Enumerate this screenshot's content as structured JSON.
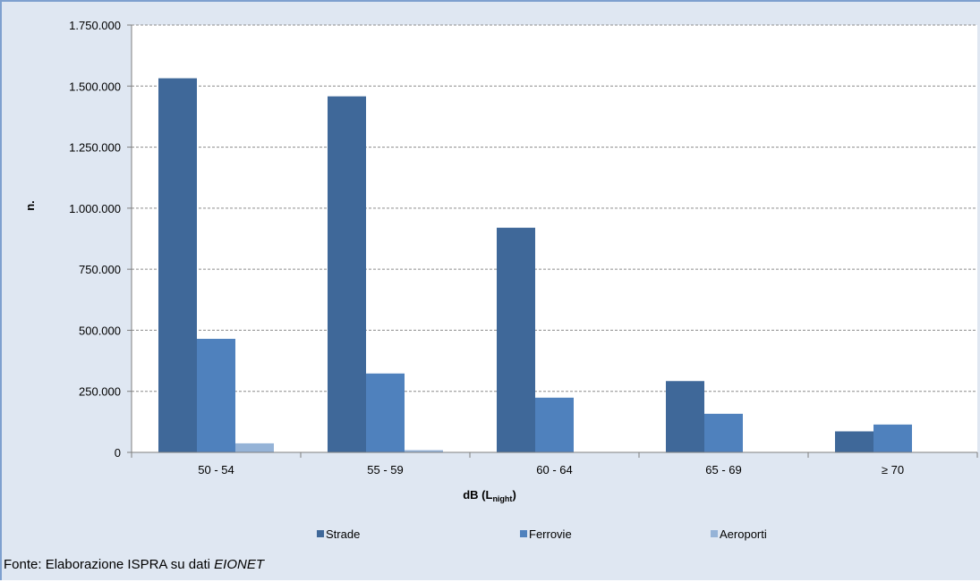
{
  "chart_data": {
    "type": "bar",
    "categories": [
      "50 - 54",
      "55 - 59",
      "60 - 64",
      "65 - 69",
      "≥ 70"
    ],
    "series": [
      {
        "name": "Strade",
        "color": "#3f6899",
        "values": [
          1532000,
          1458000,
          920000,
          292000,
          86000
        ]
      },
      {
        "name": "Ferrovie",
        "color": "#4f81bd",
        "values": [
          465000,
          323000,
          224000,
          158000,
          114000
        ]
      },
      {
        "name": "Aeroporti",
        "color": "#95b3d7",
        "values": [
          37000,
          9000,
          0,
          0,
          0
        ]
      }
    ],
    "ylabel": "n.",
    "xlabel_main": "dB (L",
    "xlabel_sub": "night",
    "xlabel_close": ")",
    "ylim": [
      0,
      1750000
    ],
    "yticks": [
      0,
      250000,
      500000,
      750000,
      1000000,
      1250000,
      1500000,
      1750000
    ],
    "ytick_labels": [
      "0",
      "250.000",
      "500.000",
      "750.000",
      "1.000.000",
      "1.250.000",
      "1.500.000",
      "1.750.000"
    ],
    "grid": true,
    "legend": "bottom"
  },
  "source": {
    "prefix": "Fonte: Elaborazione ISPRA su dati ",
    "emphasis": "EIONET"
  }
}
